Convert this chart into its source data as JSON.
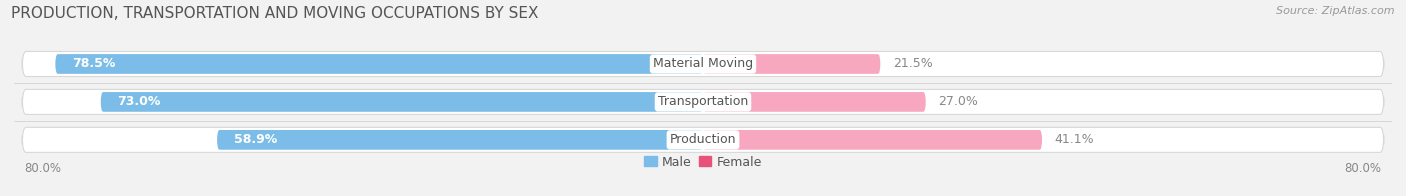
{
  "title": "PRODUCTION, TRANSPORTATION AND MOVING OCCUPATIONS BY SEX",
  "source": "Source: ZipAtlas.com",
  "categories": [
    "Material Moving",
    "Transportation",
    "Production"
  ],
  "male_pct": [
    78.5,
    73.0,
    58.9
  ],
  "female_pct": [
    21.5,
    27.0,
    41.1
  ],
  "x_min": -80.0,
  "x_max": 80.0,
  "male_color_top": "#7BBDE8",
  "male_color_bot": "#5A9FD0",
  "female_color_top": "#F7A8C0",
  "female_color_bot": "#E8527A",
  "bg_color": "#f2f2f2",
  "bar_bg_color": "#ffffff",
  "bar_border_color": "#d8d8d8",
  "title_fontsize": 11,
  "label_fontsize": 9,
  "tick_fontsize": 8.5,
  "source_fontsize": 8
}
